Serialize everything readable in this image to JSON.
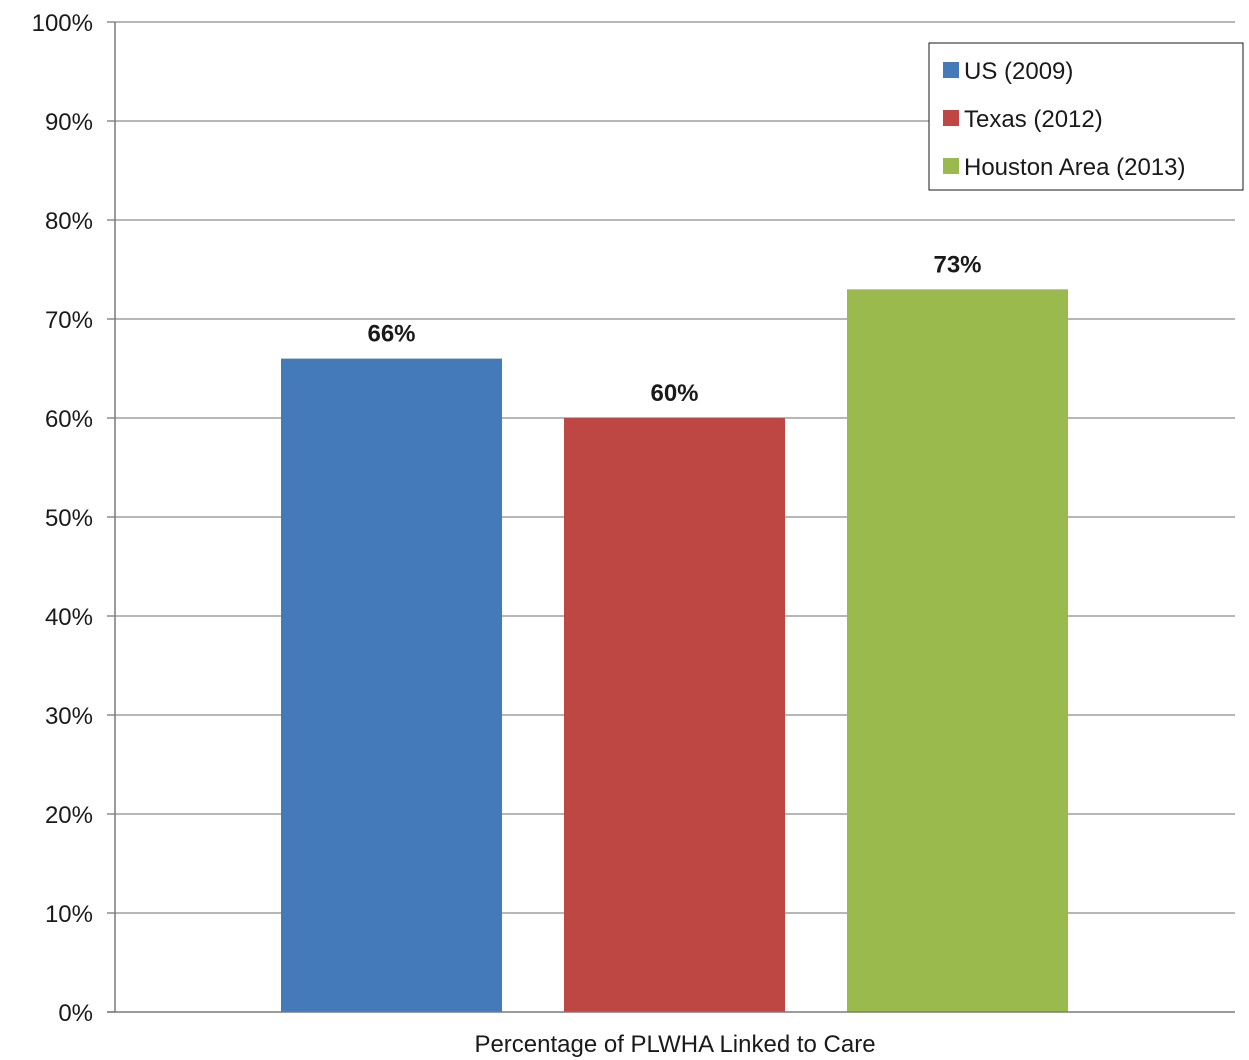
{
  "chart_data": {
    "type": "bar",
    "categories": [
      "Percentage of PLWHA Linked to Care"
    ],
    "series": [
      {
        "name": "US (2009)",
        "values": [
          66
        ],
        "color": "#4479BA",
        "label": "66%"
      },
      {
        "name": "Texas (2012)",
        "values": [
          60
        ],
        "color": "#BE4744",
        "label": "60%"
      },
      {
        "name": "Houston Area (2013)",
        "values": [
          73
        ],
        "color": "#9ABA4E",
        "label": "73%"
      }
    ],
    "xlabel": "Percentage of PLWHA Linked to Care",
    "ylabel": "",
    "ylim": [
      0,
      100
    ],
    "yticks": [
      "0%",
      "10%",
      "20%",
      "30%",
      "40%",
      "50%",
      "60%",
      "70%",
      "80%",
      "90%",
      "100%"
    ],
    "grid": true,
    "legend_position": "top-right"
  }
}
